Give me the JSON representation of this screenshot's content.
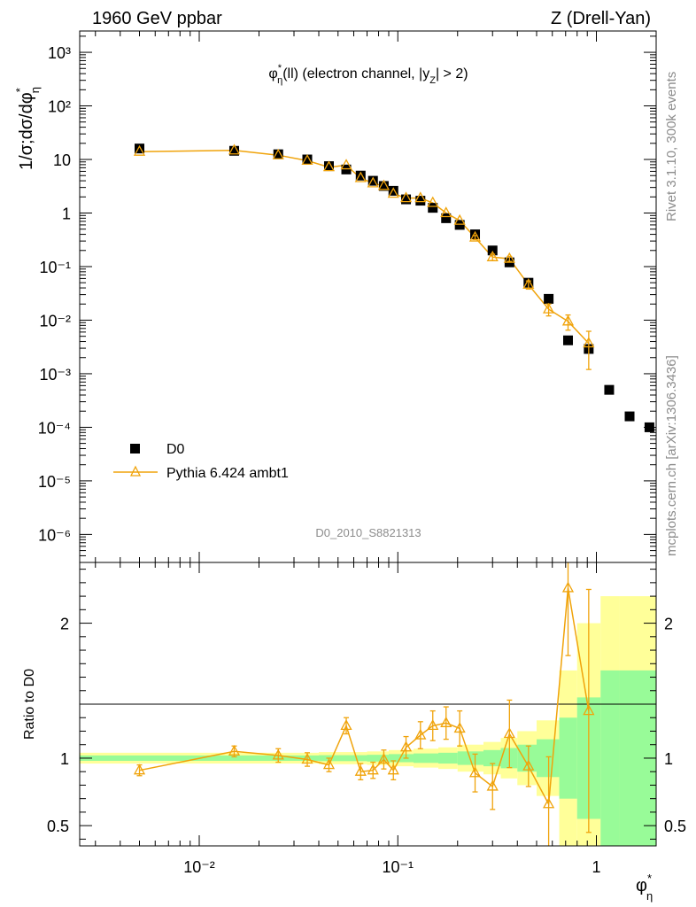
{
  "header": {
    "left": "1960 GeV ppbar",
    "right": "Z (Drell-Yan)"
  },
  "side_labels": {
    "rivet": "Rivet 3.1.10,  300k events",
    "mcplots": "mcplots.cern.ch [arXiv:1306.3436]"
  },
  "chart_data": [
    {
      "type": "scatter",
      "title": "φ*η(ll) (electron channel, |yZ| > 2)",
      "ylabel": "1/σ;dσ/dφ*η",
      "xlabel": "φ*η",
      "analysis_id": "D0_2010_S8821313",
      "xscale": "log",
      "yscale": "log",
      "xlim": [
        0.0025,
        2.0
      ],
      "ylim": [
        3e-07,
        2500
      ],
      "legend": [
        "D0",
        "Pythia 6.424 ambt1"
      ],
      "legend_position": "bottom-left",
      "x_tick_labels": [
        "10⁻²",
        "10⁻¹",
        "1"
      ],
      "y_tick_labels": [
        "10⁻⁶",
        "10⁻⁵",
        "10⁻⁴",
        "10⁻³",
        "10⁻²",
        "10⁻¹",
        "1",
        "10",
        "10²",
        "10³"
      ],
      "series": [
        {
          "name": "D0",
          "x": [
            0.005,
            0.015,
            0.025,
            0.035,
            0.045,
            0.055,
            0.065,
            0.075,
            0.085,
            0.095,
            0.11,
            0.13,
            0.15,
            0.175,
            0.205,
            0.245,
            0.3,
            0.365,
            0.455,
            0.575,
            0.72,
            0.915,
            1.16,
            1.47,
            1.85
          ],
          "y": [
            16,
            14.5,
            12.5,
            10,
            7.5,
            6.5,
            5,
            4,
            3.2,
            2.6,
            1.8,
            1.7,
            1.25,
            0.8,
            0.6,
            0.4,
            0.2,
            0.12,
            0.05,
            0.025,
            0.0042,
            0.0029,
            0.0005,
            0.00016,
            0.0001
          ]
        },
        {
          "name": "Pythia 6.424 ambt1",
          "x": [
            0.005,
            0.015,
            0.025,
            0.035,
            0.045,
            0.055,
            0.065,
            0.075,
            0.085,
            0.095,
            0.11,
            0.13,
            0.15,
            0.175,
            0.205,
            0.245,
            0.3,
            0.365,
            0.455,
            0.575,
            0.72,
            0.915
          ],
          "y": [
            14,
            14.8,
            12,
            9.5,
            7.2,
            7.8,
            4.5,
            3.6,
            3.2,
            2.3,
            1.9,
            1.9,
            1.55,
            1.0,
            0.72,
            0.35,
            0.15,
            0.14,
            0.046,
            0.016,
            0.0095,
            0.0037
          ],
          "err_y": [
            0.9,
            0.9,
            0.8,
            0.6,
            0.5,
            0.5,
            0.3,
            0.25,
            0.2,
            0.15,
            0.12,
            0.12,
            0.1,
            0.06,
            0.05,
            0.03,
            0.02,
            0.015,
            0.008,
            0.004,
            0.003,
            0.0025
          ]
        }
      ]
    },
    {
      "type": "scatter",
      "ylabel": "Ratio to D0",
      "xscale": "log",
      "xlim": [
        0.0025,
        2.0
      ],
      "ylim": [
        0.35,
        2.45
      ],
      "y_tick_labels": [
        "0.5",
        "1",
        "2"
      ],
      "series": [
        {
          "name": "Pythia 6.424 ambt1 / D0",
          "x": [
            0.005,
            0.015,
            0.025,
            0.035,
            0.045,
            0.055,
            0.065,
            0.075,
            0.085,
            0.095,
            0.11,
            0.13,
            0.15,
            0.175,
            0.205,
            0.245,
            0.3,
            0.365,
            0.455,
            0.575,
            0.72,
            0.915
          ],
          "y": [
            0.91,
            1.05,
            1.02,
            0.99,
            0.95,
            1.24,
            0.9,
            0.91,
            0.99,
            0.91,
            1.08,
            1.17,
            1.24,
            1.26,
            1.22,
            0.89,
            0.79,
            1.18,
            0.94,
            0.66,
            2.26,
            1.35
          ],
          "err_y": [
            0.04,
            0.04,
            0.05,
            0.05,
            0.05,
            0.06,
            0.06,
            0.06,
            0.07,
            0.07,
            0.08,
            0.1,
            0.11,
            0.12,
            0.13,
            0.14,
            0.17,
            0.25,
            0.15,
            0.35,
            0.5,
            0.9
          ]
        }
      ],
      "bands": [
        {
          "name": "uncertainty (inner)",
          "color": "#98fb98",
          "x_edges": [
            0.0025,
            0.04,
            0.07,
            0.09,
            0.12,
            0.16,
            0.2,
            0.27,
            0.33,
            0.4,
            0.5,
            0.65,
            0.8,
            1.05,
            1.3,
            2.0
          ],
          "half_width": [
            0.02,
            0.022,
            0.025,
            0.03,
            0.035,
            0.04,
            0.05,
            0.06,
            0.075,
            0.1,
            0.14,
            0.3,
            0.45,
            0.65,
            0.65
          ]
        },
        {
          "name": "uncertainty (outer)",
          "color": "#ffff99",
          "x_edges": [
            0.0025,
            0.04,
            0.07,
            0.09,
            0.12,
            0.16,
            0.2,
            0.27,
            0.33,
            0.4,
            0.5,
            0.65,
            0.8,
            1.05,
            1.3,
            2.0
          ],
          "half_width": [
            0.04,
            0.045,
            0.05,
            0.06,
            0.07,
            0.08,
            0.1,
            0.12,
            0.15,
            0.2,
            0.28,
            0.65,
            1.0,
            1.2,
            1.2
          ]
        }
      ]
    }
  ],
  "colors": {
    "data": "#000000",
    "mc": "#f0a30a"
  }
}
